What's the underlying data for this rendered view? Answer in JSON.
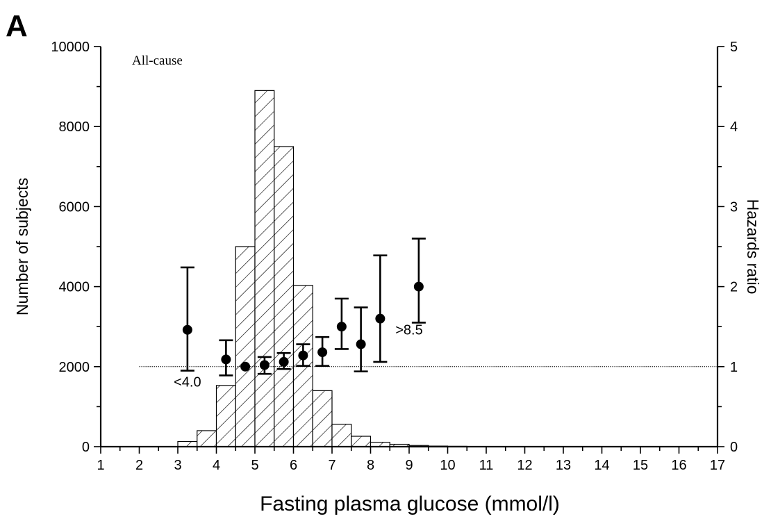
{
  "chart_data": {
    "type": "bar",
    "panel_label": "A",
    "annotation": "All-cause",
    "xlabel": "Fasting plasma glucose (mmol/l)",
    "ylabel_left": "Number of subjects",
    "ylabel_right": "Hazards ratio",
    "xlim": [
      1,
      17
    ],
    "ylim_left": [
      0,
      10000
    ],
    "ylim_right": [
      0,
      5
    ],
    "x_ticks": [
      "1",
      "2",
      "3",
      "4",
      "5",
      "6",
      "7",
      "8",
      "9",
      "10",
      "11",
      "12",
      "13",
      "14",
      "15",
      "16",
      "17"
    ],
    "y_ticks_left": [
      "0",
      "2000",
      "4000",
      "6000",
      "8000",
      "10000"
    ],
    "y_ticks_right": [
      "0",
      "1",
      "2",
      "3",
      "4",
      "5"
    ],
    "histogram": {
      "name": "Number of subjects",
      "bin_width": 0.5,
      "bins": [
        {
          "x0": 3.0,
          "value": 130
        },
        {
          "x0": 3.5,
          "value": 400
        },
        {
          "x0": 4.0,
          "value": 1530
        },
        {
          "x0": 4.5,
          "value": 5000
        },
        {
          "x0": 5.0,
          "value": 8900
        },
        {
          "x0": 5.5,
          "value": 7500
        },
        {
          "x0": 6.0,
          "value": 4030
        },
        {
          "x0": 6.5,
          "value": 1400
        },
        {
          "x0": 7.0,
          "value": 560
        },
        {
          "x0": 7.5,
          "value": 260
        },
        {
          "x0": 8.0,
          "value": 110
        },
        {
          "x0": 8.5,
          "value": 60
        },
        {
          "x0": 9.0,
          "value": 30
        },
        {
          "x0": 9.5,
          "value": 15
        },
        {
          "x0": 10.0,
          "value": 10
        }
      ]
    },
    "hazard_ratios": {
      "name": "Hazards ratio",
      "points": [
        {
          "x": 3.25,
          "hr": 1.46,
          "lo": 0.95,
          "hi": 2.24
        },
        {
          "x": 4.25,
          "hr": 1.09,
          "lo": 0.89,
          "hi": 1.33
        },
        {
          "x": 4.75,
          "hr": 1.0,
          "lo": 1.0,
          "hi": 1.0
        },
        {
          "x": 5.25,
          "hr": 1.02,
          "lo": 0.91,
          "hi": 1.12
        },
        {
          "x": 5.75,
          "hr": 1.06,
          "lo": 0.97,
          "hi": 1.17
        },
        {
          "x": 6.25,
          "hr": 1.14,
          "lo": 1.01,
          "hi": 1.28
        },
        {
          "x": 6.75,
          "hr": 1.18,
          "lo": 1.01,
          "hi": 1.37
        },
        {
          "x": 7.25,
          "hr": 1.5,
          "lo": 1.22,
          "hi": 1.85
        },
        {
          "x": 7.75,
          "hr": 1.28,
          "lo": 0.94,
          "hi": 1.74
        },
        {
          "x": 8.25,
          "hr": 1.6,
          "lo": 1.06,
          "hi": 2.39
        },
        {
          "x": 9.25,
          "hr": 2.0,
          "lo": 1.55,
          "hi": 2.6
        }
      ]
    },
    "reference_line": {
      "hr": 1,
      "x_start": 2,
      "x_end": 17
    },
    "point_labels": [
      {
        "text": "<4.0",
        "x": 3.25,
        "hr": 0.75
      },
      {
        "text": ">8.5",
        "x": 9.0,
        "hr": 1.4
      }
    ]
  },
  "colors": {
    "ink": "#000000",
    "background": "#ffffff"
  }
}
